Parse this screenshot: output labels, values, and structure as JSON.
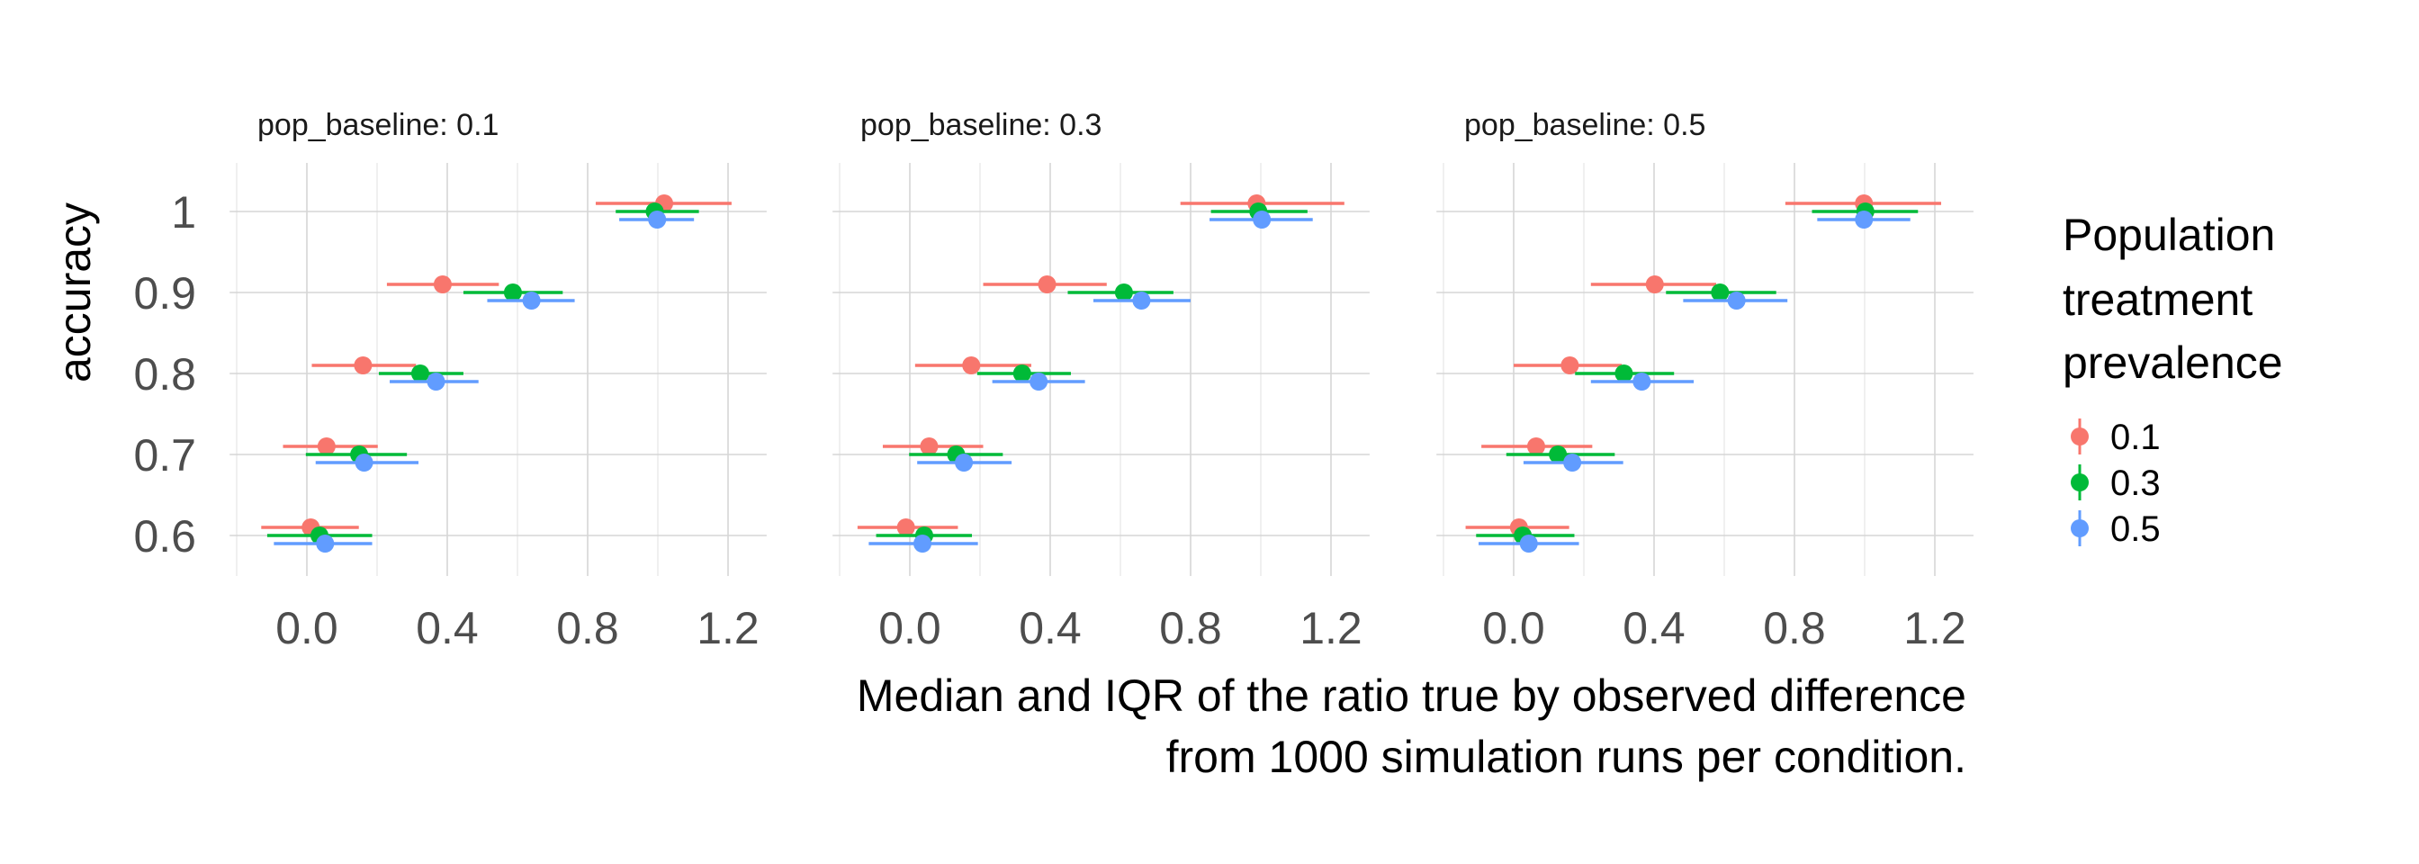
{
  "chart_data": {
    "type": "scatter",
    "subtype": "point-range (median with IQR), faceted",
    "title": "",
    "xlabel": "Median and IQR of the ratio true by observed difference\nfrom 1000 simulation runs per condition.",
    "xlabel_lines": [
      "Median and IQR of the ratio true by observed difference",
      "from 1000 simulation runs per condition."
    ],
    "ylabel": "accuracy",
    "xlim": [
      -0.22,
      1.31
    ],
    "ylim": [
      0.55,
      1.06
    ],
    "xticks": [
      0.0,
      0.4,
      0.8,
      1.2
    ],
    "xtick_labels": [
      "0.0",
      "0.4",
      "0.8",
      "1.2"
    ],
    "yticks": [
      0.6,
      0.7,
      0.8,
      0.9,
      1.0
    ],
    "ytick_labels": [
      "0.6",
      "0.7",
      "0.8",
      "0.9",
      "1"
    ],
    "grid": true,
    "legend": {
      "title_lines": [
        "Population",
        "treatment",
        "prevalence"
      ],
      "placement": "right",
      "entries": [
        {
          "label": "0.1",
          "color": "#F8766D"
        },
        {
          "label": "0.3",
          "color": "#00BA38"
        },
        {
          "label": "0.5",
          "color": "#619CFF"
        }
      ]
    },
    "facets": [
      {
        "title": "pop_baseline: 0.1",
        "series": [
          {
            "name": "0.1",
            "points": [
              {
                "y": 1.0,
                "median": 1.018,
                "q1": 0.823,
                "q3": 1.21
              },
              {
                "y": 0.9,
                "median": 0.387,
                "q1": 0.228,
                "q3": 0.547
              },
              {
                "y": 0.8,
                "median": 0.16,
                "q1": 0.014,
                "q3": 0.311
              },
              {
                "y": 0.7,
                "median": 0.056,
                "q1": -0.068,
                "q3": 0.202
              },
              {
                "y": 0.6,
                "median": 0.011,
                "q1": -0.13,
                "q3": 0.148
              }
            ]
          },
          {
            "name": "0.3",
            "points": [
              {
                "y": 1.0,
                "median": 0.991,
                "q1": 0.88,
                "q3": 1.117
              },
              {
                "y": 0.9,
                "median": 0.587,
                "q1": 0.446,
                "q3": 0.729
              },
              {
                "y": 0.8,
                "median": 0.323,
                "q1": 0.205,
                "q3": 0.446
              },
              {
                "y": 0.7,
                "median": 0.149,
                "q1": -0.003,
                "q3": 0.285
              },
              {
                "y": 0.6,
                "median": 0.036,
                "q1": -0.113,
                "q3": 0.186
              }
            ]
          },
          {
            "name": "0.5",
            "points": [
              {
                "y": 1.0,
                "median": 0.998,
                "q1": 0.89,
                "q3": 1.103
              },
              {
                "y": 0.9,
                "median": 0.64,
                "q1": 0.514,
                "q3": 0.763
              },
              {
                "y": 0.8,
                "median": 0.368,
                "q1": 0.236,
                "q3": 0.489
              },
              {
                "y": 0.7,
                "median": 0.163,
                "q1": 0.025,
                "q3": 0.318
              },
              {
                "y": 0.6,
                "median": 0.052,
                "q1": -0.094,
                "q3": 0.186
              }
            ]
          }
        ]
      },
      {
        "title": "pop_baseline: 0.3",
        "series": [
          {
            "name": "0.1",
            "points": [
              {
                "y": 1.0,
                "median": 0.988,
                "q1": 0.771,
                "q3": 1.238
              },
              {
                "y": 0.9,
                "median": 0.391,
                "q1": 0.209,
                "q3": 0.561
              },
              {
                "y": 0.8,
                "median": 0.175,
                "q1": 0.015,
                "q3": 0.346
              },
              {
                "y": 0.7,
                "median": 0.055,
                "q1": -0.077,
                "q3": 0.209
              },
              {
                "y": 0.6,
                "median": -0.011,
                "q1": -0.149,
                "q3": 0.137
              }
            ]
          },
          {
            "name": "0.3",
            "points": [
              {
                "y": 1.0,
                "median": 0.993,
                "q1": 0.858,
                "q3": 1.133
              },
              {
                "y": 0.9,
                "median": 0.61,
                "q1": 0.45,
                "q3": 0.751
              },
              {
                "y": 0.8,
                "median": 0.32,
                "q1": 0.192,
                "q3": 0.459
              },
              {
                "y": 0.7,
                "median": 0.132,
                "q1": -0.002,
                "q3": 0.265
              },
              {
                "y": 0.6,
                "median": 0.041,
                "q1": -0.096,
                "q3": 0.177
              }
            ]
          },
          {
            "name": "0.5",
            "points": [
              {
                "y": 1.0,
                "median": 1.003,
                "q1": 0.854,
                "q3": 1.148
              },
              {
                "y": 0.9,
                "median": 0.66,
                "q1": 0.523,
                "q3": 0.8
              },
              {
                "y": 0.8,
                "median": 0.367,
                "q1": 0.235,
                "q3": 0.499
              },
              {
                "y": 0.7,
                "median": 0.154,
                "q1": 0.021,
                "q3": 0.29
              },
              {
                "y": 0.6,
                "median": 0.036,
                "q1": -0.117,
                "q3": 0.194
              }
            ]
          }
        ]
      },
      {
        "title": "pop_baseline: 0.5",
        "series": [
          {
            "name": "0.1",
            "points": [
              {
                "y": 1.0,
                "median": 0.998,
                "q1": 0.774,
                "q3": 1.218
              },
              {
                "y": 0.9,
                "median": 0.402,
                "q1": 0.22,
                "q3": 0.577
              },
              {
                "y": 0.8,
                "median": 0.16,
                "q1": 0.0,
                "q3": 0.308
              },
              {
                "y": 0.7,
                "median": 0.064,
                "q1": -0.092,
                "q3": 0.224
              },
              {
                "y": 0.6,
                "median": 0.015,
                "q1": -0.137,
                "q3": 0.158
              }
            ]
          },
          {
            "name": "0.3",
            "points": [
              {
                "y": 1.0,
                "median": 1.002,
                "q1": 0.85,
                "q3": 1.152
              },
              {
                "y": 0.9,
                "median": 0.588,
                "q1": 0.434,
                "q3": 0.748
              },
              {
                "y": 0.8,
                "median": 0.314,
                "q1": 0.175,
                "q3": 0.457
              },
              {
                "y": 0.7,
                "median": 0.126,
                "q1": -0.021,
                "q3": 0.288
              },
              {
                "y": 0.6,
                "median": 0.026,
                "q1": -0.107,
                "q3": 0.173
              }
            ]
          },
          {
            "name": "0.5",
            "points": [
              {
                "y": 1.0,
                "median": 0.998,
                "q1": 0.865,
                "q3": 1.13
              },
              {
                "y": 0.9,
                "median": 0.635,
                "q1": 0.483,
                "q3": 0.78
              },
              {
                "y": 0.8,
                "median": 0.365,
                "q1": 0.22,
                "q3": 0.513
              },
              {
                "y": 0.7,
                "median": 0.167,
                "q1": 0.028,
                "q3": 0.312
              },
              {
                "y": 0.6,
                "median": 0.043,
                "q1": -0.1,
                "q3": 0.186
              }
            ]
          }
        ]
      }
    ]
  }
}
